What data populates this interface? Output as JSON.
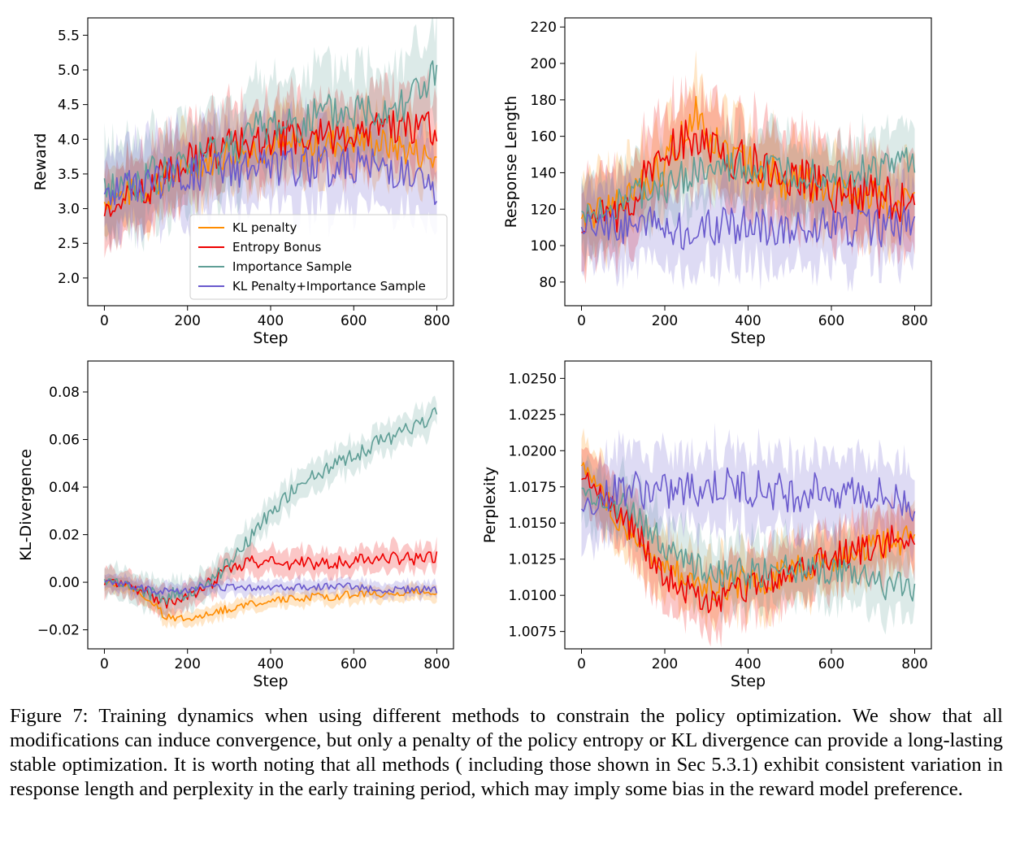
{
  "colors": {
    "kl_penalty": "#ff8c00",
    "entropy_bonus": "#ee0000",
    "importance_sample": "#5f9e96",
    "kl_is": "#6a5acd"
  },
  "legend": [
    "KL penalty",
    "Entropy Bonus",
    "Importance Sample",
    "KL Penalty+Importance Sample"
  ],
  "caption": "Figure 7: Training dynamics when using different methods to constrain the policy optimization. We show that all modifications can induce convergence, but only a penalty of the policy entropy or KL divergence can provide a long-lasting stable optimization. It is worth noting that all methods ( including those shown in Sec 5.3.1) exhibit consistent variation in response length and perplexity in the early training period, which may imply some bias in the reward model preference.",
  "chart_data": [
    {
      "type": "line",
      "ylabel": "Reward",
      "xlabel": "Step",
      "xlim": [
        -40,
        840
      ],
      "ylim": [
        1.6,
        5.75
      ],
      "xticks": [
        "0",
        "200",
        "400",
        "600",
        "800"
      ],
      "yticks": [
        "2.0",
        "2.5",
        "3.0",
        "3.5",
        "4.0",
        "4.5",
        "5.0",
        "5.5"
      ],
      "legend_position": "lower-right",
      "x": [
        0,
        100,
        200,
        300,
        400,
        500,
        600,
        700,
        800
      ],
      "series": [
        {
          "name": "KL penalty",
          "values": [
            3.1,
            3.3,
            3.6,
            3.8,
            3.9,
            3.9,
            4.0,
            3.9,
            3.7
          ],
          "band": 0.45
        },
        {
          "name": "Entropy Bonus",
          "values": [
            3.0,
            3.3,
            3.7,
            3.9,
            4.0,
            4.0,
            4.1,
            4.2,
            4.15
          ],
          "band": 0.5
        },
        {
          "name": "Importance Sample",
          "values": [
            3.3,
            3.4,
            3.6,
            3.9,
            4.2,
            4.3,
            4.4,
            4.5,
            4.9
          ],
          "band": 0.6
        },
        {
          "name": "KL Penalty+Importance Sample",
          "values": [
            3.2,
            3.4,
            3.5,
            3.6,
            3.6,
            3.6,
            3.6,
            3.6,
            3.2
          ],
          "band": 0.55
        }
      ]
    },
    {
      "type": "line",
      "ylabel": "Response Length",
      "xlabel": "Step",
      "xlim": [
        -40,
        840
      ],
      "ylim": [
        67,
        225
      ],
      "xticks": [
        "0",
        "200",
        "400",
        "600",
        "800"
      ],
      "yticks": [
        "80",
        "100",
        "120",
        "140",
        "160",
        "180",
        "200",
        "220"
      ],
      "x": [
        0,
        100,
        200,
        250,
        275,
        300,
        400,
        500,
        600,
        700,
        800
      ],
      "series": [
        {
          "name": "KL penalty",
          "values": [
            115,
            122,
            145,
            165,
            178,
            160,
            145,
            135,
            130,
            125,
            120
          ],
          "band": 20
        },
        {
          "name": "Entropy Bonus",
          "values": [
            112,
            120,
            150,
            158,
            160,
            155,
            145,
            138,
            130,
            128,
            122
          ],
          "band": 22
        },
        {
          "name": "Importance Sample",
          "values": [
            115,
            125,
            132,
            138,
            140,
            140,
            142,
            140,
            140,
            140,
            148
          ],
          "band": 18
        },
        {
          "name": "KL Penalty+Importance Sample",
          "values": [
            110,
            112,
            112,
            108,
            108,
            110,
            112,
            110,
            110,
            110,
            112
          ],
          "band": 20
        }
      ]
    },
    {
      "type": "line",
      "ylabel": "KL-Divergence",
      "xlabel": "Step",
      "xlim": [
        -40,
        840
      ],
      "ylim": [
        -0.028,
        0.093
      ],
      "xticks": [
        "0",
        "200",
        "400",
        "600",
        "800"
      ],
      "yticks": [
        "−0.02",
        "0.00",
        "0.02",
        "0.04",
        "0.06",
        "0.08"
      ],
      "x": [
        0,
        50,
        100,
        150,
        200,
        250,
        300,
        350,
        400,
        450,
        500,
        550,
        600,
        650,
        700,
        750,
        800
      ],
      "series": [
        {
          "name": "KL penalty",
          "values": [
            0.0,
            -0.001,
            -0.006,
            -0.015,
            -0.015,
            -0.013,
            -0.011,
            -0.009,
            -0.008,
            -0.007,
            -0.006,
            -0.006,
            -0.005,
            -0.005,
            -0.005,
            -0.004,
            -0.004
          ],
          "band": 0.003
        },
        {
          "name": "Entropy Bonus",
          "values": [
            0.0,
            -0.001,
            -0.004,
            -0.009,
            -0.006,
            -0.001,
            0.005,
            0.009,
            0.008,
            0.008,
            0.008,
            0.008,
            0.009,
            0.01,
            0.01,
            0.01,
            0.011
          ],
          "band": 0.005
        },
        {
          "name": "Importance Sample",
          "values": [
            0.0,
            -0.001,
            -0.004,
            -0.006,
            -0.004,
            -0.001,
            0.008,
            0.018,
            0.03,
            0.038,
            0.044,
            0.049,
            0.053,
            0.058,
            0.062,
            0.066,
            0.071
          ],
          "band": 0.006
        },
        {
          "name": "KL Penalty+Importance Sample",
          "values": [
            0.0,
            -0.001,
            -0.003,
            -0.004,
            -0.003,
            -0.002,
            -0.002,
            -0.002,
            -0.002,
            -0.002,
            -0.002,
            -0.002,
            -0.002,
            -0.003,
            -0.003,
            -0.003,
            -0.003
          ],
          "band": 0.003
        }
      ]
    },
    {
      "type": "line",
      "ylabel": "Perplexity",
      "xlabel": "Step",
      "xlim": [
        -40,
        840
      ],
      "ylim": [
        1.0063,
        1.0262
      ],
      "xticks": [
        "0",
        "200",
        "400",
        "600",
        "800"
      ],
      "yticks": [
        "1.0075",
        "1.0100",
        "1.0125",
        "1.0150",
        "1.0175",
        "1.0200",
        "1.0225",
        "1.0250"
      ],
      "x": [
        0,
        100,
        200,
        300,
        400,
        500,
        600,
        700,
        800
      ],
      "series": [
        {
          "name": "KL penalty",
          "values": [
            1.019,
            1.015,
            1.012,
            1.0105,
            1.011,
            1.0115,
            1.0125,
            1.0135,
            1.014
          ],
          "band": 0.002
        },
        {
          "name": "Entropy Bonus",
          "values": [
            1.0185,
            1.0155,
            1.0115,
            1.0095,
            1.0105,
            1.0115,
            1.0125,
            1.0135,
            1.0142
          ],
          "band": 0.002
        },
        {
          "name": "Importance Sample",
          "values": [
            1.017,
            1.016,
            1.0135,
            1.0115,
            1.0115,
            1.012,
            1.0115,
            1.011,
            1.0102
          ],
          "band": 0.002
        },
        {
          "name": "KL Penalty+Importance Sample",
          "values": [
            1.016,
            1.0175,
            1.017,
            1.0175,
            1.0175,
            1.017,
            1.0175,
            1.017,
            1.0162
          ],
          "band": 0.0025
        }
      ]
    }
  ]
}
